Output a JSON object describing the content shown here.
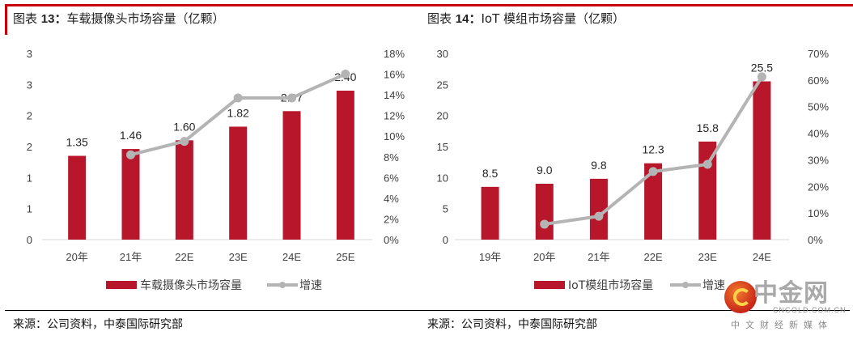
{
  "colors": {
    "bar": "#b8172b",
    "line": "#b4b4b4",
    "accent": "#c8000a"
  },
  "left": {
    "title_prefix": "图表",
    "title_num": "13：",
    "title_text": "车载摄像头市场容量（亿颗）",
    "source": "来源：公司资料，中泰国际研究部"
  },
  "right": {
    "title_prefix": "图表",
    "title_num": "14：",
    "title_text": "IoT 模组市场容量（亿颗）",
    "source": "来源：公司资料，中泰国际研究部"
  },
  "watermark": {
    "name": "中金网",
    "url": "CNGOLD.COM.CN",
    "tagline": "中文财经新媒体"
  },
  "chart_data": [
    {
      "type": "bar",
      "title": "图表 13：车载摄像头市场容量（亿颗）",
      "categories": [
        "20年",
        "21年",
        "22E",
        "23E",
        "24E",
        "25E"
      ],
      "series": [
        {
          "name": "车载摄像头市场容量",
          "type": "bar",
          "axis": "left",
          "values": [
            1.35,
            1.46,
            1.6,
            1.82,
            2.07,
            2.4
          ],
          "labels": [
            "1.35",
            "1.46",
            "1.60",
            "1.82",
            "2.07",
            "2.40"
          ]
        },
        {
          "name": "增速",
          "type": "line",
          "axis": "right",
          "values": [
            null,
            8.2,
            9.5,
            13.7,
            13.7,
            16.0
          ]
        }
      ],
      "ylim": [
        0,
        3
      ],
      "y_ticks": [
        "0",
        "1",
        "1",
        "2",
        "2",
        "3",
        "3"
      ],
      "y2lim": [
        0,
        18
      ],
      "y2_ticks": [
        "0%",
        "2%",
        "4%",
        "6%",
        "8%",
        "10%",
        "12%",
        "14%",
        "16%",
        "18%"
      ],
      "legend": "bottom",
      "grid": false
    },
    {
      "type": "bar",
      "title": "图表 14：IoT 模组市场容量（亿颗）",
      "categories": [
        "19年",
        "20年",
        "21年",
        "22E",
        "23E",
        "24E"
      ],
      "series": [
        {
          "name": "IoT模组市场容量",
          "type": "bar",
          "axis": "left",
          "values": [
            8.5,
            9.0,
            9.8,
            12.3,
            15.8,
            25.5
          ],
          "labels": [
            "8.5",
            "9.0",
            "9.8",
            "12.3",
            "15.8",
            "25.5"
          ]
        },
        {
          "name": "增速",
          "type": "line",
          "axis": "right",
          "values": [
            null,
            5.8,
            8.8,
            25.6,
            28.3,
            61.2
          ]
        }
      ],
      "ylim": [
        0,
        30
      ],
      "y_ticks": [
        "0",
        "5",
        "10",
        "15",
        "20",
        "25",
        "30"
      ],
      "y2lim": [
        0,
        70
      ],
      "y2_ticks": [
        "0%",
        "10%",
        "20%",
        "30%",
        "40%",
        "50%",
        "60%",
        "70%"
      ],
      "legend": "bottom",
      "grid": false
    }
  ]
}
